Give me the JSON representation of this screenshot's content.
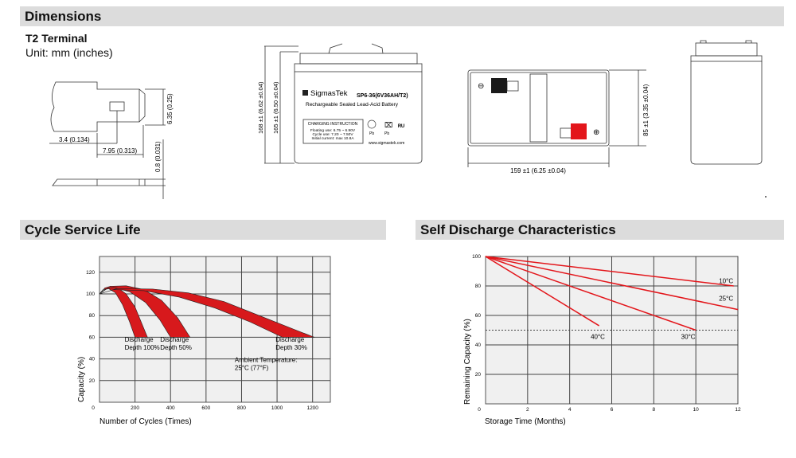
{
  "sections": {
    "dimensions": "Dimensions",
    "cycle": "Cycle Service Life",
    "self": "Self Discharge Characteristics"
  },
  "terminal": {
    "title": "T2 Terminal",
    "unit": "Unit: mm (inches)",
    "dim_height": "6.35 (0.25)",
    "dim_a": "3.4 (0.134)",
    "dim_b": "7.95 (0.313)",
    "dim_thick": "0.8 (0.031)"
  },
  "front": {
    "h_total": "168 ±1 (6.62 ±0.04)",
    "h_case": "165 ±1 (6.50 ±0.04)",
    "brand": "SigmasTek",
    "model": "SP6-36(6V36AH/T2)",
    "desc": "Rechargeable Sealed Lead-Acid Battery",
    "charging_title": "CHARGING INSTRUCTION",
    "charging_lines": [
      "Floating use: 6.75 ~ 6.90V",
      "Cycle use: 7.20 ~ 7.50V",
      "Initial current: max 10.8A"
    ],
    "pb1": "Pb",
    "pb2": "Pb",
    "url": "www.sigmastek.com"
  },
  "top": {
    "width": "159 ±1 (6.25 ±0.04)",
    "depth": "85 ±1 (3.35 ±0.04)",
    "neg": "⊖",
    "pos": "⊕",
    "colors": {
      "negative": "#1a1a1a",
      "positive": "#e3161b"
    }
  },
  "chart_data": [
    {
      "type": "area",
      "xlabel": "Number of Cycles (Times)",
      "ylabel": "Capacity (%)",
      "xlim": [
        0,
        1300
      ],
      "ylim": [
        0,
        125
      ],
      "xticks": [
        0,
        200,
        400,
        600,
        800,
        1000,
        1200
      ],
      "yticks": [
        0,
        20,
        40,
        60,
        80,
        100,
        120
      ],
      "grid": true,
      "color": "#d7191c",
      "series": [
        {
          "name": "Discharge Depth 100%",
          "upper": [
            [
              0,
              100
            ],
            [
              30,
              105.5
            ],
            [
              60,
              107
            ],
            [
              100,
              106
            ],
            [
              150,
              100
            ],
            [
              200,
              88
            ],
            [
              240,
              72
            ],
            [
              270,
              60
            ]
          ],
          "lower": [
            [
              200,
              60
            ],
            [
              170,
              74
            ],
            [
              130,
              90
            ],
            [
              90,
              101
            ],
            [
              50,
              105
            ],
            [
              20,
              104
            ],
            [
              0,
              100
            ]
          ]
        },
        {
          "name": "Discharge Depth 50%",
          "upper": [
            [
              0,
              100
            ],
            [
              60,
              107
            ],
            [
              150,
              107.5
            ],
            [
              250,
              104
            ],
            [
              350,
              94
            ],
            [
              440,
              78
            ],
            [
              510,
              60
            ]
          ],
          "lower": [
            [
              400,
              60
            ],
            [
              340,
              76
            ],
            [
              260,
              92
            ],
            [
              170,
              102
            ],
            [
              80,
              106
            ],
            [
              30,
              104
            ],
            [
              0,
              100
            ]
          ]
        },
        {
          "name": "Discharge Depth 30%",
          "upper": [
            [
              0,
              100
            ],
            [
              100,
              105
            ],
            [
              300,
              104.5
            ],
            [
              500,
              101
            ],
            [
              700,
              93
            ],
            [
              900,
              80
            ],
            [
              1100,
              67
            ],
            [
              1210,
              60
            ]
          ],
          "lower": [
            [
              1030,
              60
            ],
            [
              850,
              74
            ],
            [
              650,
              87
            ],
            [
              450,
              97
            ],
            [
              250,
              103
            ],
            [
              80,
              104
            ],
            [
              0,
              100
            ]
          ]
        }
      ],
      "labels": [
        {
          "lines": [
            "Discharge",
            "Depth 100%"
          ],
          "x": 200,
          "y": 56
        },
        {
          "lines": [
            "Discharge",
            "Depth 50%"
          ],
          "x": 400,
          "y": 56
        },
        {
          "lines": [
            "Discharge",
            "Depth 30%"
          ],
          "x": 1050,
          "y": 56
        },
        {
          "lines": [
            "Ambient Temperature:",
            "25°C (77°F)"
          ],
          "x": 820,
          "y": 37
        }
      ]
    },
    {
      "type": "line",
      "xlabel": "Storage Time (Months)",
      "ylabel": "Remaining Capacity (%)",
      "xlim": [
        0,
        12
      ],
      "ylim": [
        0,
        100
      ],
      "xticks": [
        0,
        2,
        4,
        6,
        8,
        10,
        12
      ],
      "yticks": [
        0,
        20,
        40,
        60,
        80,
        100
      ],
      "grid": true,
      "reference_line": 50,
      "color": "#e3161b",
      "series": [
        {
          "name": "10°C",
          "points": [
            [
              0,
              100
            ],
            [
              11.8,
              80
            ]
          ],
          "label_at": [
            11.1,
            82
          ]
        },
        {
          "name": "25°C",
          "points": [
            [
              0,
              100
            ],
            [
              12,
              64
            ]
          ],
          "label_at": [
            11.1,
            70
          ]
        },
        {
          "name": "30°C",
          "points": [
            [
              0,
              100
            ],
            [
              10,
              50
            ]
          ],
          "label_at": [
            9.3,
            44
          ]
        },
        {
          "name": "40°C",
          "points": [
            [
              0,
              100
            ],
            [
              5.4,
              53
            ]
          ],
          "label_at": [
            5,
            44
          ]
        }
      ]
    }
  ]
}
